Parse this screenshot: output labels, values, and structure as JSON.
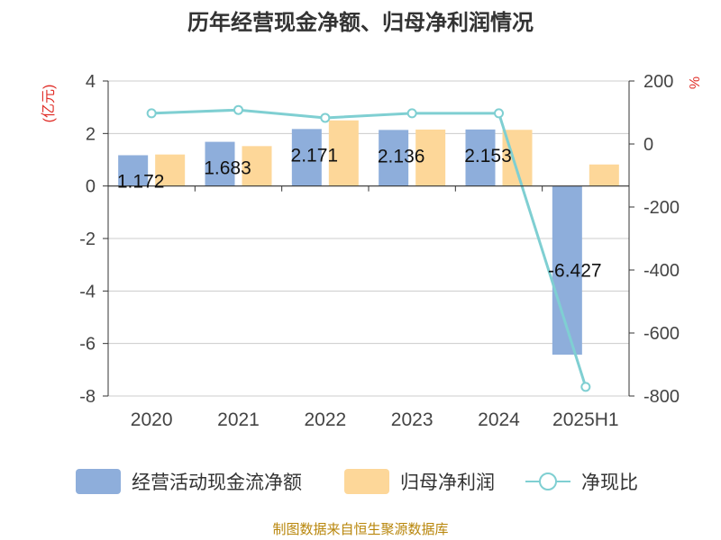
{
  "chart_data": {
    "type": "bar",
    "title": "历年经营现金净额、归母净利润情况",
    "categories": [
      "2020",
      "2021",
      "2022",
      "2023",
      "2024",
      "2025H1"
    ],
    "series": [
      {
        "name": "经营活动现金流净额",
        "type": "bar",
        "axis": "left",
        "color": "#8eaedb",
        "values": [
          1.172,
          1.683,
          2.171,
          2.136,
          2.153,
          -6.427
        ],
        "labels": [
          "1.172",
          "1.683",
          "2.171",
          "2.136",
          "2.153",
          "-6.427"
        ]
      },
      {
        "name": "归母净利润",
        "type": "bar",
        "axis": "left",
        "color": "#fdd799",
        "values": [
          1.2,
          1.52,
          2.5,
          2.15,
          2.14,
          0.82
        ]
      },
      {
        "name": "净现比",
        "type": "line",
        "axis": "right",
        "color": "#7fcfd2",
        "values": [
          97.5,
          108,
          83,
          97.5,
          97.5,
          -771
        ]
      }
    ],
    "y_left": {
      "label": "(亿元)",
      "range": [
        -8,
        4
      ],
      "ticks": [
        "-8",
        "-6",
        "-4",
        "-2",
        "0",
        "2",
        "4"
      ]
    },
    "y_right": {
      "label": "%",
      "range": [
        -800,
        200
      ],
      "ticks": [
        "-800",
        "-600",
        "-400",
        "-200",
        "0",
        "200"
      ]
    },
    "grid": true,
    "legend_position": "bottom"
  },
  "footer": {
    "source": "制图数据来自恒生聚源数据库"
  },
  "colors": {
    "title": "#333333",
    "axis_label": "#e0302a",
    "tick": "#444444",
    "grid": "#cccccc",
    "axis": "#333333",
    "footer": "#b8860b"
  }
}
